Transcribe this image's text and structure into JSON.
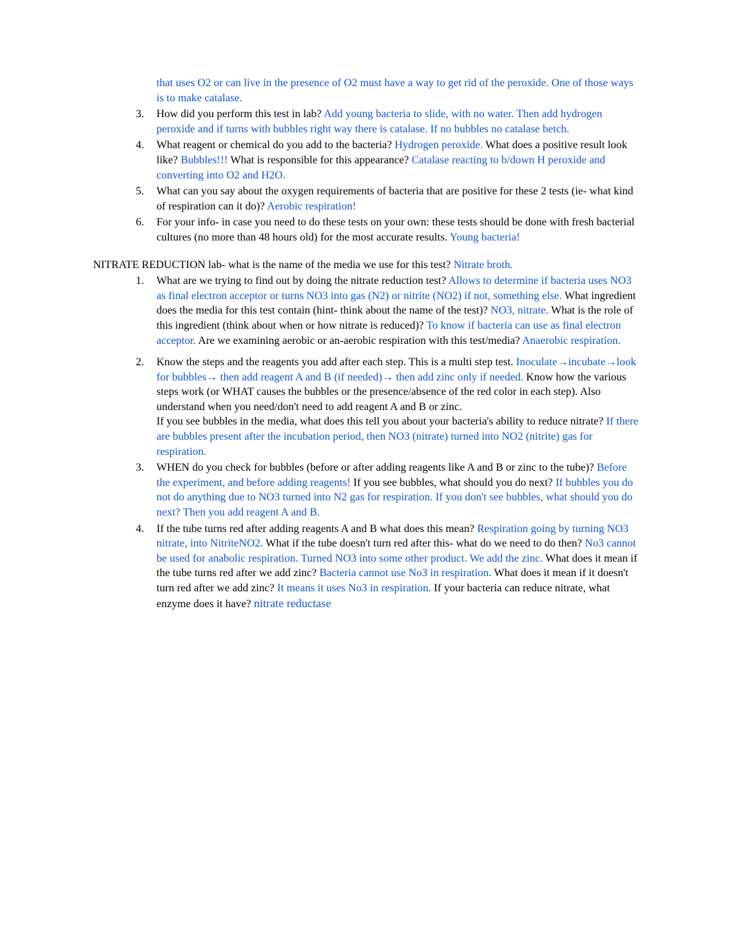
{
  "top": {
    "items": [
      {
        "marker": "",
        "content_black": "",
        "content_blue": "that uses O2 or can live in the presence of O2 must have a way to get rid of the peroxide. One of those ways is to make catalase."
      },
      {
        "marker": "3.",
        "parts": [
          {
            "t": "How did you perform this test in lab? ",
            "c": "black"
          },
          {
            "t": "Add young bacteria to slide, with no water. Then add hydrogen peroxide and if turns with bubbles right way there is catalase. If no bubbles no catalase betch.",
            "c": "blue"
          }
        ]
      },
      {
        "marker": "4.",
        "parts": [
          {
            "t": "What reagent or chemical do you add to the bacteria? ",
            "c": "black"
          },
          {
            "t": "Hydrogen peroxide.",
            "c": "blue"
          },
          {
            "t": " What does a positive result look like? ",
            "c": "black"
          },
          {
            "t": "Bubbles!!!",
            "c": "blue"
          },
          {
            "t": " What is responsible for this appearance? ",
            "c": "black"
          },
          {
            "t": "Catalase reacting to b/down H peroxide and converting into O2 and H2O.",
            "c": "blue"
          }
        ]
      },
      {
        "marker": "5.",
        "parts": [
          {
            "t": "What can you say about the oxygen requirements of bacteria that are positive for these 2 tests (ie- what kind of respiration can it do)? ",
            "c": "black"
          },
          {
            "t": "Aerobic respiration!",
            "c": "blue"
          }
        ]
      },
      {
        "marker": "6.",
        "parts": [
          {
            "t": "For your info- in case you need to do these tests on your own: these tests should be done with fresh bacterial cultures (no more than 48 hours old) for the most accurate results. ",
            "c": "black"
          },
          {
            "t": "Young bacteria!",
            "c": "blue"
          }
        ]
      }
    ]
  },
  "section": {
    "title_parts": [
      {
        "t": "NITRATE REDUCTION lab- what is the name of the media we use for this test? ",
        "c": "black"
      },
      {
        "t": "Nitrate broth.",
        "c": "blue"
      }
    ],
    "items": [
      {
        "marker": "1.",
        "parts": [
          {
            "t": "What are we trying to find out by doing the nitrate reduction test?  ",
            "c": "black"
          },
          {
            "t": "Allows to determine if bacteria uses NO3 as final electron acceptor or turns NO3 into gas (N2) or nitrite (NO2) if not, something else.",
            "c": "blue"
          },
          {
            "t": " What ingredient does the media for this test contain (hint- think about the name of the test)? ",
            "c": "black"
          },
          {
            "t": "NO3, nitrate.",
            "c": "blue"
          },
          {
            "t": " What is the role of this ingredient (think about when or how nitrate is reduced)? ",
            "c": "black"
          },
          {
            "t": "To know if bacteria can use as final electron acceptor.",
            "c": "blue"
          },
          {
            "t": " Are we examining aerobic or an-aerobic respiration with this test/media? ",
            "c": "black"
          },
          {
            "t": "Anaerobic respiration.",
            "c": "blue"
          }
        ]
      },
      {
        "marker": "2.",
        "parts": [
          {
            "t": "Know the steps and the reagents you add after each step. This is a multi step test. ",
            "c": "black"
          },
          {
            "t": "Inoculate",
            "c": "blue"
          },
          {
            "t": "→",
            "c": "blue"
          },
          {
            "t": "incubate",
            "c": "blue"
          },
          {
            "t": "→",
            "c": "blue"
          },
          {
            "t": "look for bubbles",
            "c": "blue"
          },
          {
            "t": "→",
            "c": "blue"
          },
          {
            "t": " then add reagent A and B (if needed)",
            "c": "blue"
          },
          {
            "t": "→",
            "c": "blue"
          },
          {
            "t": " then add zinc only if needed.",
            "c": "blue"
          },
          {
            "t": " Know how",
            "c": "black"
          },
          {
            "t": " the various steps work (or WHAT causes the bubbles or the presence/absence of the red color in each step). Also understand when you need/don't need to add reagent A and B or zinc.\nIf you see bubbles in the media, what does this tell you about your bacteria's ability to reduce nitrate? ",
            "c": "black"
          },
          {
            "t": "If there are bubbles present after the incubation period, then NO3 (nitrate) turned into NO2 (nitrite) gas for respiration.",
            "c": "blue"
          }
        ]
      },
      {
        "marker": "3.",
        "parts": [
          {
            "t": "WHEN do you check for bubbles (before or after adding reagents like A and B or zinc to the tube)? ",
            "c": "black"
          },
          {
            "t": "Before the experiment, and before adding reagents!",
            "c": "blue"
          },
          {
            "t": " If you see bubbles, what should you do next?  ",
            "c": "black"
          },
          {
            "t": "If bubbles you do not do anything due to NO3 turned into N2 gas for respiration. If you don't see bubbles, what should you do next? Then you add reagent A and B.",
            "c": "blue"
          }
        ]
      },
      {
        "marker": "4.",
        "parts": [
          {
            "t": "If the tube turns red after adding reagents A and B what does this mean? ",
            "c": "black"
          },
          {
            "t": "Respiration going by turning NO3 nitrate, into NitriteNO2.",
            "c": "blue"
          },
          {
            "t": " What if the tube doesn't turn red after this- what do we need to do then? ",
            "c": "black"
          },
          {
            "t": "No3 cannot be used for anabolic respiration. Turned NO3 into some other product.  We add the zinc.",
            "c": "blue"
          },
          {
            "t": " What does it mean if the tube turns red after we add zinc? ",
            "c": "black"
          },
          {
            "t": "Bacteria cannot use No3 in respiration.",
            "c": "blue"
          },
          {
            "t": " What does it mean if it doesn't turn red after we add zinc? ",
            "c": "black"
          },
          {
            "t": "It means it uses No3 in respiration.",
            "c": "blue"
          },
          {
            "t": " If your bacteria can reduce nitrate, what enzyme does it have? ",
            "c": "black"
          },
          {
            "t": "nitrate reductase",
            "c": "blue",
            "cls": "enzyme"
          }
        ]
      }
    ]
  }
}
